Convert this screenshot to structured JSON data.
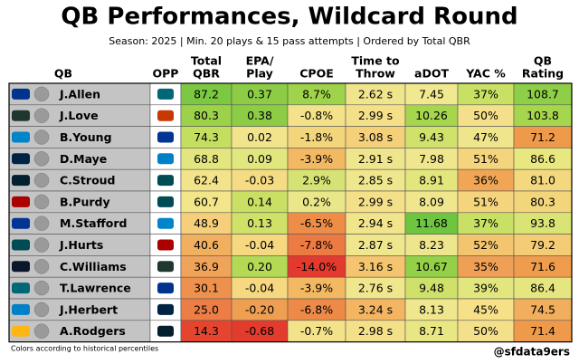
{
  "title": "QB Performances, Wildcard Round",
  "subtitle": "Season: 2025 | Min. 20 plays & 15 pass attempts | Ordered by Total QBR",
  "headers": [
    [
      "QB"
    ],
    [
      "OPP"
    ],
    [
      "Total",
      "QBR"
    ],
    [
      "EPA/",
      "Play"
    ],
    [
      "CPOE"
    ],
    [
      "Time to",
      "Throw"
    ],
    [
      "aDOT"
    ],
    [
      "YAC %"
    ],
    [
      "QB",
      "Rating"
    ]
  ],
  "rows": [
    {
      "name": "J.Allen",
      "team": "#00338d",
      "opp": "#006778",
      "cells": [
        "87.2",
        "0.37",
        "8.7%",
        "2.62 s",
        "7.45",
        "37%",
        "108.7"
      ],
      "colors": [
        "#7cc843",
        "#8ccd45",
        "#9fd34b",
        "#f0e48c",
        "#f1e98f",
        "#c8e064",
        "#8fce47"
      ]
    },
    {
      "name": "J.Love",
      "team": "#203731",
      "opp": "#c83803",
      "cells": [
        "80.3",
        "0.38",
        "-0.8%",
        "2.99 s",
        "10.26",
        "50%",
        "103.8"
      ],
      "colors": [
        "#9bd24a",
        "#8ccd45",
        "#f3e28a",
        "#f5e08a",
        "#a6d64d",
        "#f4e08a",
        "#a6d64d"
      ]
    },
    {
      "name": "B.Young",
      "team": "#0085ca",
      "opp": "#003594",
      "cells": [
        "74.3",
        "0.02",
        "-1.8%",
        "3.08 s",
        "9.43",
        "47%",
        "71.2"
      ],
      "colors": [
        "#c4df60",
        "#f1e48c",
        "#f3d57c",
        "#f5d07a",
        "#d0e26b",
        "#efe58c",
        "#ef9a4a"
      ]
    },
    {
      "name": "D.Maye",
      "team": "#002244",
      "opp": "#0080c6",
      "cells": [
        "68.8",
        "0.09",
        "-3.9%",
        "2.91 s",
        "7.98",
        "51%",
        "86.6"
      ],
      "colors": [
        "#e3e67e",
        "#e1e67f",
        "#f2b862",
        "#efe58c",
        "#efe68e",
        "#f4d47c",
        "#e8e780"
      ]
    },
    {
      "name": "C.Stroud",
      "team": "#03202f",
      "opp": "#004c54",
      "cells": [
        "62.4",
        "-0.03",
        "2.9%",
        "2.85 s",
        "8.91",
        "36%",
        "81.0"
      ],
      "colors": [
        "#f3e48b",
        "#f4dc84",
        "#d6e374",
        "#efe68d",
        "#e3e67d",
        "#f1a656",
        "#f3d880"
      ]
    },
    {
      "name": "B.Purdy",
      "team": "#aa0000",
      "opp": "#004c54",
      "cells": [
        "60.7",
        "0.14",
        "0.2%",
        "2.99 s",
        "8.09",
        "51%",
        "80.3"
      ],
      "colors": [
        "#f2e58a",
        "#c9e064",
        "#eae78a",
        "#f5e08a",
        "#efe68d",
        "#f4d47c",
        "#f3d57c"
      ]
    },
    {
      "name": "M.Stafford",
      "team": "#003594",
      "opp": "#0085ca",
      "cells": [
        "48.9",
        "0.13",
        "-6.5%",
        "2.94 s",
        "11.68",
        "37%",
        "93.8"
      ],
      "colors": [
        "#f5cf7a",
        "#cfe168",
        "#ee8d48",
        "#f1e48b",
        "#6ec640",
        "#c8e064",
        "#d9e474"
      ]
    },
    {
      "name": "J.Hurts",
      "team": "#004c54",
      "opp": "#aa0000",
      "cells": [
        "40.6",
        "-0.04",
        "-7.8%",
        "2.87 s",
        "8.23",
        "52%",
        "79.2"
      ],
      "colors": [
        "#f1b060",
        "#f5d880",
        "#ec7a42",
        "#efe68d",
        "#eee68c",
        "#f3c56e",
        "#f3cc75"
      ]
    },
    {
      "name": "C.Williams",
      "team": "#0b162a",
      "opp": "#203731",
      "cells": [
        "36.9",
        "0.20",
        "-14.0%",
        "3.16 s",
        "10.67",
        "35%",
        "71.6"
      ],
      "colors": [
        "#f0a45a",
        "#b4da55",
        "#e43a2e",
        "#f4c56e",
        "#94d149",
        "#f0a055",
        "#ef9c4c"
      ]
    },
    {
      "name": "T.Lawrence",
      "team": "#006778",
      "opp": "#00338d",
      "cells": [
        "30.1",
        "-0.04",
        "-3.9%",
        "2.76 s",
        "9.48",
        "39%",
        "86.4"
      ],
      "colors": [
        "#ee914c",
        "#f5d880",
        "#f2b862",
        "#efe68d",
        "#cfe16a",
        "#e1e67e",
        "#e6e680"
      ]
    },
    {
      "name": "J.Herbert",
      "team": "#0080c6",
      "opp": "#002244",
      "cells": [
        "25.0",
        "-0.20",
        "-6.8%",
        "3.24 s",
        "8.13",
        "45%",
        "74.5"
      ],
      "colors": [
        "#ec7d45",
        "#ef9f52",
        "#ee8a47",
        "#f3b562",
        "#efe68d",
        "#f6e088",
        "#f1ae5c"
      ]
    },
    {
      "name": "A.Rodgers",
      "team": "#ffb612",
      "opp": "#03202f",
      "cells": [
        "14.3",
        "-0.68",
        "-0.7%",
        "2.98 s",
        "8.71",
        "50%",
        "71.4"
      ],
      "colors": [
        "#e5452f",
        "#e33b2d",
        "#f3e28a",
        "#f5e08a",
        "#e8e783",
        "#f4e08a",
        "#ef9a4a"
      ]
    }
  ],
  "note": "Colors according to historical percentiles",
  "credit": "@sfdata9ers"
}
